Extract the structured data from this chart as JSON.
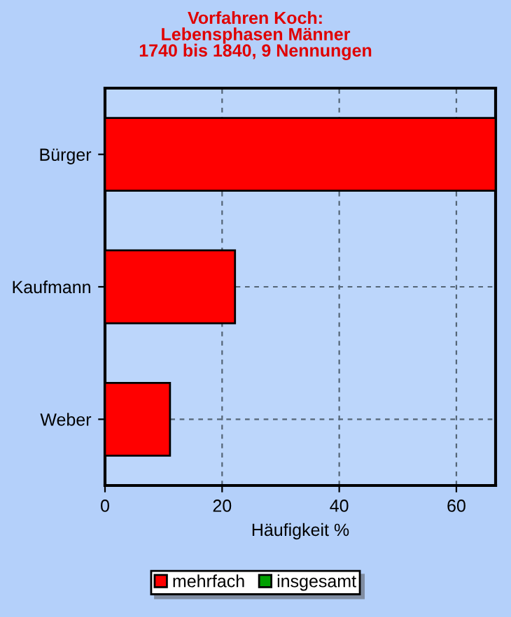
{
  "chart_data": {
    "type": "bar",
    "orientation": "horizontal",
    "title": "Vorfahren Koch:\nLebensphasen Männer\n1740 bis 1840, 9 Nennungen",
    "categories": [
      "Bürger",
      "Kaufmann",
      "Weber"
    ],
    "series": [
      {
        "name": "mehrfach",
        "color": "#ff0000",
        "values": [
          66.7,
          22.2,
          11.1
        ]
      },
      {
        "name": "insgesamt",
        "color": "#00a000",
        "values": [
          null,
          null,
          null
        ]
      }
    ],
    "xlabel": "Häufigkeit %",
    "xlim": [
      0,
      66.7
    ],
    "xticks": [
      0,
      20,
      40,
      60
    ],
    "grid": true,
    "legend": "bottom"
  }
}
